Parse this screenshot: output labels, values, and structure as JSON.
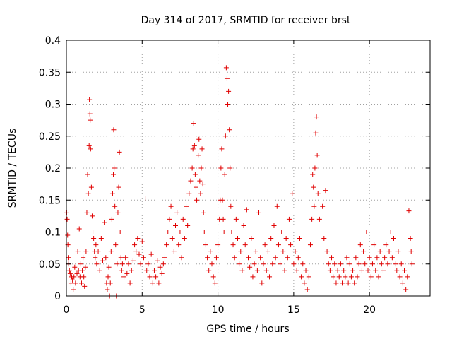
{
  "chart_data": {
    "type": "scatter",
    "title": "Day 314 of 2017, SRMTID for receiver brst",
    "xlabel": "GPS time / hours",
    "ylabel": "SRMTID / TECUs",
    "xlim": [
      0,
      24
    ],
    "ylim": [
      0,
      0.4
    ],
    "x_ticks": [
      0,
      5,
      10,
      15,
      20
    ],
    "x_tick_labels": [
      "0",
      "5",
      "10",
      "15",
      "20"
    ],
    "y_ticks": [
      0,
      0.05,
      0.1,
      0.15,
      0.2,
      0.25,
      0.3,
      0.35,
      0.4
    ],
    "y_tick_labels": [
      "0",
      "0.05",
      "0.1",
      "0.15",
      "0.2",
      "0.25",
      "0.3",
      "0.35",
      "0.4"
    ],
    "grid": true,
    "legend": "none",
    "marker": "plus",
    "color": "#e00000",
    "series": [
      {
        "values": [
          [
            0.02,
            0.13
          ],
          [
            0.05,
            0.12
          ],
          [
            0.08,
            0.095
          ],
          [
            0.1,
            0.08
          ],
          [
            0.12,
            0.06
          ],
          [
            0.15,
            0.05
          ],
          [
            0.2,
            0.04
          ],
          [
            0.25,
            0.035
          ],
          [
            0.3,
            0.02
          ],
          [
            0.35,
            0.03
          ],
          [
            0.4,
            0.025
          ],
          [
            0.45,
            0.01
          ],
          [
            0.5,
            0.03
          ],
          [
            0.55,
            0.045
          ],
          [
            0.6,
            0.02
          ],
          [
            0.7,
            0.035
          ],
          [
            0.75,
            0.07
          ],
          [
            0.8,
            0.04
          ],
          [
            0.85,
            0.105
          ],
          [
            0.9,
            0.03
          ],
          [
            0.95,
            0.05
          ],
          [
            1.0,
            0.02
          ],
          [
            1.05,
            0.04
          ],
          [
            1.1,
            0.06
          ],
          [
            1.15,
            0.03
          ],
          [
            1.2,
            0.015
          ],
          [
            1.25,
            0.045
          ],
          [
            1.3,
            0.07
          ],
          [
            1.35,
            0.13
          ],
          [
            1.4,
            0.19
          ],
          [
            1.45,
            0.16
          ],
          [
            1.5,
            0.235
          ],
          [
            1.52,
            0.307
          ],
          [
            1.55,
            0.285
          ],
          [
            1.57,
            0.275
          ],
          [
            1.6,
            0.23
          ],
          [
            1.65,
            0.17
          ],
          [
            1.7,
            0.125
          ],
          [
            1.75,
            0.1
          ],
          [
            1.8,
            0.09
          ],
          [
            1.85,
            0.07
          ],
          [
            1.9,
            0.06
          ],
          [
            1.95,
            0.08
          ],
          [
            2.0,
            0.05
          ],
          [
            2.1,
            0.07
          ],
          [
            2.2,
            0.04
          ],
          [
            2.3,
            0.09
          ],
          [
            2.4,
            0.055
          ],
          [
            2.5,
            0.115
          ],
          [
            2.6,
            0.06
          ],
          [
            2.65,
            0.02
          ],
          [
            2.7,
            0.01
          ],
          [
            2.75,
            0.03
          ],
          [
            2.8,
            0.045
          ],
          [
            2.85,
            0.0
          ],
          [
            2.9,
            0.02
          ],
          [
            2.95,
            0.07
          ],
          [
            3.0,
            0.12
          ],
          [
            3.05,
            0.16
          ],
          [
            3.1,
            0.19
          ],
          [
            3.12,
            0.26
          ],
          [
            3.15,
            0.2
          ],
          [
            3.2,
            0.14
          ],
          [
            3.25,
            0.08
          ],
          [
            3.3,
            0.0
          ],
          [
            3.35,
            0.05
          ],
          [
            3.4,
            0.13
          ],
          [
            3.45,
            0.17
          ],
          [
            3.5,
            0.225
          ],
          [
            3.55,
            0.1
          ],
          [
            3.6,
            0.06
          ],
          [
            3.65,
            0.04
          ],
          [
            3.7,
            0.05
          ],
          [
            3.8,
            0.03
          ],
          [
            3.9,
            0.06
          ],
          [
            4.0,
            0.035
          ],
          [
            4.1,
            0.05
          ],
          [
            4.2,
            0.02
          ],
          [
            4.3,
            0.04
          ],
          [
            4.4,
            0.055
          ],
          [
            4.5,
            0.08
          ],
          [
            4.6,
            0.07
          ],
          [
            4.7,
            0.09
          ],
          [
            4.8,
            0.065
          ],
          [
            4.9,
            0.05
          ],
          [
            5.0,
            0.085
          ],
          [
            5.1,
            0.06
          ],
          [
            5.2,
            0.153
          ],
          [
            5.3,
            0.04
          ],
          [
            5.4,
            0.05
          ],
          [
            5.5,
            0.03
          ],
          [
            5.6,
            0.065
          ],
          [
            5.7,
            0.02
          ],
          [
            5.8,
            0.04
          ],
          [
            5.9,
            0.03
          ],
          [
            6.0,
            0.055
          ],
          [
            6.1,
            0.02
          ],
          [
            6.2,
            0.045
          ],
          [
            6.3,
            0.035
          ],
          [
            6.4,
            0.05
          ],
          [
            6.5,
            0.06
          ],
          [
            6.6,
            0.08
          ],
          [
            6.7,
            0.1
          ],
          [
            6.8,
            0.12
          ],
          [
            6.9,
            0.14
          ],
          [
            7.0,
            0.09
          ],
          [
            7.1,
            0.07
          ],
          [
            7.2,
            0.11
          ],
          [
            7.3,
            0.13
          ],
          [
            7.4,
            0.08
          ],
          [
            7.5,
            0.1
          ],
          [
            7.6,
            0.06
          ],
          [
            7.7,
            0.12
          ],
          [
            7.8,
            0.09
          ],
          [
            7.9,
            0.14
          ],
          [
            8.0,
            0.11
          ],
          [
            8.1,
            0.16
          ],
          [
            8.2,
            0.18
          ],
          [
            8.3,
            0.2
          ],
          [
            8.35,
            0.23
          ],
          [
            8.4,
            0.27
          ],
          [
            8.45,
            0.235
          ],
          [
            8.5,
            0.19
          ],
          [
            8.55,
            0.17
          ],
          [
            8.6,
            0.15
          ],
          [
            8.7,
            0.22
          ],
          [
            8.75,
            0.245
          ],
          [
            8.8,
            0.18
          ],
          [
            8.85,
            0.16
          ],
          [
            8.9,
            0.2
          ],
          [
            8.95,
            0.23
          ],
          [
            9.0,
            0.175
          ],
          [
            9.05,
            0.13
          ],
          [
            9.1,
            0.1
          ],
          [
            9.2,
            0.08
          ],
          [
            9.3,
            0.06
          ],
          [
            9.4,
            0.04
          ],
          [
            9.5,
            0.07
          ],
          [
            9.6,
            0.05
          ],
          [
            9.7,
            0.03
          ],
          [
            9.8,
            0.02
          ],
          [
            9.9,
            0.06
          ],
          [
            10.0,
            0.08
          ],
          [
            10.1,
            0.12
          ],
          [
            10.15,
            0.15
          ],
          [
            10.2,
            0.2
          ],
          [
            10.25,
            0.23
          ],
          [
            10.3,
            0.15
          ],
          [
            10.35,
            0.12
          ],
          [
            10.4,
            0.1
          ],
          [
            10.45,
            0.19
          ],
          [
            10.5,
            0.25
          ],
          [
            10.55,
            0.357
          ],
          [
            10.6,
            0.34
          ],
          [
            10.65,
            0.3
          ],
          [
            10.7,
            0.32
          ],
          [
            10.75,
            0.26
          ],
          [
            10.8,
            0.2
          ],
          [
            10.85,
            0.14
          ],
          [
            10.9,
            0.1
          ],
          [
            11.0,
            0.08
          ],
          [
            11.1,
            0.06
          ],
          [
            11.2,
            0.12
          ],
          [
            11.3,
            0.09
          ],
          [
            11.4,
            0.05
          ],
          [
            11.5,
            0.07
          ],
          [
            11.6,
            0.04
          ],
          [
            11.7,
            0.11
          ],
          [
            11.8,
            0.08
          ],
          [
            11.9,
            0.135
          ],
          [
            12.0,
            0.06
          ],
          [
            12.1,
            0.045
          ],
          [
            12.2,
            0.09
          ],
          [
            12.3,
            0.03
          ],
          [
            12.4,
            0.05
          ],
          [
            12.5,
            0.07
          ],
          [
            12.6,
            0.04
          ],
          [
            12.7,
            0.13
          ],
          [
            12.8,
            0.06
          ],
          [
            12.9,
            0.02
          ],
          [
            13.0,
            0.05
          ],
          [
            13.1,
            0.08
          ],
          [
            13.2,
            0.04
          ],
          [
            13.3,
            0.07
          ],
          [
            13.4,
            0.03
          ],
          [
            13.5,
            0.09
          ],
          [
            13.6,
            0.05
          ],
          [
            13.7,
            0.11
          ],
          [
            13.8,
            0.06
          ],
          [
            13.9,
            0.14
          ],
          [
            14.0,
            0.08
          ],
          [
            14.1,
            0.05
          ],
          [
            14.2,
            0.1
          ],
          [
            14.3,
            0.07
          ],
          [
            14.4,
            0.04
          ],
          [
            14.5,
            0.09
          ],
          [
            14.6,
            0.06
          ],
          [
            14.7,
            0.12
          ],
          [
            14.8,
            0.08
          ],
          [
            14.9,
            0.16
          ],
          [
            15.0,
            0.05
          ],
          [
            15.1,
            0.07
          ],
          [
            15.2,
            0.04
          ],
          [
            15.3,
            0.06
          ],
          [
            15.4,
            0.09
          ],
          [
            15.5,
            0.03
          ],
          [
            15.6,
            0.05
          ],
          [
            15.7,
            0.02
          ],
          [
            15.8,
            0.04
          ],
          [
            15.9,
            0.01
          ],
          [
            16.0,
            0.03
          ],
          [
            16.1,
            0.08
          ],
          [
            16.2,
            0.12
          ],
          [
            16.25,
            0.19
          ],
          [
            16.3,
            0.17
          ],
          [
            16.35,
            0.14
          ],
          [
            16.4,
            0.2
          ],
          [
            16.45,
            0.255
          ],
          [
            16.5,
            0.28
          ],
          [
            16.55,
            0.22
          ],
          [
            16.6,
            0.16
          ],
          [
            16.7,
            0.12
          ],
          [
            16.8,
            0.1
          ],
          [
            16.9,
            0.14
          ],
          [
            17.0,
            0.09
          ],
          [
            17.1,
            0.165
          ],
          [
            17.2,
            0.07
          ],
          [
            17.3,
            0.05
          ],
          [
            17.4,
            0.04
          ],
          [
            17.5,
            0.06
          ],
          [
            17.6,
            0.03
          ],
          [
            17.7,
            0.05
          ],
          [
            17.8,
            0.02
          ],
          [
            17.9,
            0.04
          ],
          [
            18.0,
            0.03
          ],
          [
            18.1,
            0.05
          ],
          [
            18.2,
            0.02
          ],
          [
            18.3,
            0.04
          ],
          [
            18.4,
            0.03
          ],
          [
            18.5,
            0.06
          ],
          [
            18.6,
            0.02
          ],
          [
            18.7,
            0.05
          ],
          [
            18.8,
            0.03
          ],
          [
            18.9,
            0.04
          ],
          [
            19.0,
            0.02
          ],
          [
            19.1,
            0.06
          ],
          [
            19.2,
            0.03
          ],
          [
            19.3,
            0.05
          ],
          [
            19.4,
            0.08
          ],
          [
            19.5,
            0.04
          ],
          [
            19.6,
            0.07
          ],
          [
            19.7,
            0.05
          ],
          [
            19.8,
            0.1
          ],
          [
            19.9,
            0.04
          ],
          [
            20.0,
            0.06
          ],
          [
            20.1,
            0.03
          ],
          [
            20.2,
            0.05
          ],
          [
            20.3,
            0.08
          ],
          [
            20.4,
            0.04
          ],
          [
            20.5,
            0.06
          ],
          [
            20.6,
            0.03
          ],
          [
            20.7,
            0.07
          ],
          [
            20.8,
            0.05
          ],
          [
            20.9,
            0.04
          ],
          [
            21.0,
            0.06
          ],
          [
            21.1,
            0.08
          ],
          [
            21.2,
            0.05
          ],
          [
            21.3,
            0.07
          ],
          [
            21.4,
            0.1
          ],
          [
            21.5,
            0.06
          ],
          [
            21.6,
            0.09
          ],
          [
            21.7,
            0.05
          ],
          [
            21.8,
            0.04
          ],
          [
            21.9,
            0.07
          ],
          [
            22.0,
            0.03
          ],
          [
            22.1,
            0.05
          ],
          [
            22.2,
            0.02
          ],
          [
            22.3,
            0.04
          ],
          [
            22.4,
            0.01
          ],
          [
            22.5,
            0.03
          ],
          [
            22.6,
            0.133
          ],
          [
            22.7,
            0.09
          ],
          [
            22.75,
            0.07
          ],
          [
            22.8,
            0.05
          ]
        ]
      }
    ]
  }
}
